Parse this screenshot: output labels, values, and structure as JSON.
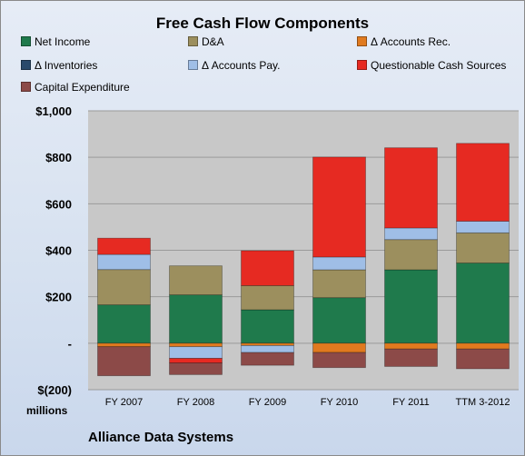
{
  "chart_data": {
    "type": "bar",
    "stacked": true,
    "title": "Free Cash Flow Components",
    "ylabel": "millions",
    "footer": "Alliance Data Systems",
    "categories": [
      "FY 2007",
      "FY 2008",
      "FY 2009",
      "FY 2010",
      "FY 2011",
      "TTM 3-2012"
    ],
    "y_ticks": [
      "$(200)",
      "-",
      "$200",
      "$400",
      "$600",
      "$800",
      "$1,000"
    ],
    "y_tick_values": [
      -200,
      0,
      200,
      400,
      600,
      800,
      1000
    ],
    "ylim": [
      -200,
      1000
    ],
    "grid": true,
    "legend_position": "top",
    "series": [
      {
        "name": "Net Income",
        "color": "#1f7a4c",
        "values": [
          165,
          208,
          144,
          196,
          316,
          345
        ]
      },
      {
        "name": "D&A",
        "color": "#9c8f5e",
        "values": [
          152,
          125,
          104,
          120,
          130,
          130
        ]
      },
      {
        "name": "Δ Accounts Rec.",
        "color": "#e07a1f",
        "values": [
          -15,
          -15,
          -10,
          -40,
          -25,
          -25
        ]
      },
      {
        "name": "Δ Inventories",
        "color": "#2a4a6b",
        "values": [
          0,
          0,
          0,
          0,
          0,
          0
        ]
      },
      {
        "name": "Δ Accounts Pay.",
        "color": "#9fbee6",
        "values": [
          65,
          -50,
          -30,
          55,
          50,
          50
        ]
      },
      {
        "name": "Questionable Cash Sources",
        "color": "#e62a22",
        "values": [
          70,
          -20,
          150,
          430,
          345,
          335
        ]
      },
      {
        "name": "Capital Expenditure",
        "color": "#8c4a48",
        "values": [
          -125,
          -50,
          -55,
          -65,
          -75,
          -85
        ]
      }
    ]
  }
}
